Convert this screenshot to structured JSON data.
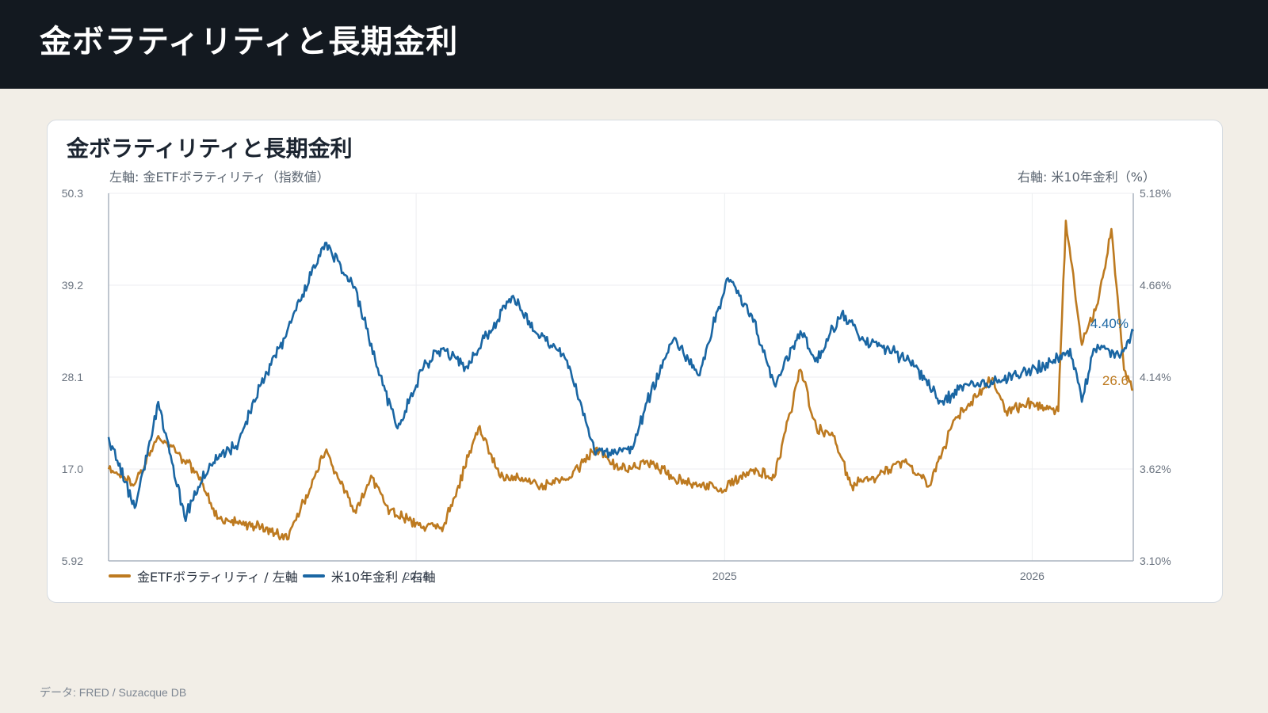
{
  "header": {
    "title": "金ボラティリティと長期金利"
  },
  "card": {
    "title": "金ボラティリティと長期金利",
    "left_axis_caption": "左軸: 金ETFボラティリティ（指数値）",
    "right_axis_caption": "右軸: 米10年金利（%）"
  },
  "legend": {
    "gold_label": "金ETFボラティリティ / 左軸",
    "rate_label": "米10年金利 / 右軸"
  },
  "footer": {
    "source": "データ: FRED / Suzacque DB"
  },
  "colors": {
    "gold": "#bd7a20",
    "rate": "#1a66a3",
    "grid": "#eceef1",
    "axis": "#aab4bf"
  },
  "chart_data": {
    "type": "line",
    "x_range": [
      "2023-01-01",
      "2026-05-01"
    ],
    "x_ticks": [
      "2024",
      "2025",
      "2026"
    ],
    "left_axis": {
      "ticks": [
        "5.92",
        "17.0",
        "28.1",
        "39.2",
        "50.3"
      ],
      "ylim": [
        5.92,
        50.3
      ]
    },
    "right_axis": {
      "ticks": [
        "3.10%",
        "3.62%",
        "4.14%",
        "4.66%",
        "5.18%"
      ],
      "ylim": [
        3.1,
        5.18
      ]
    },
    "end_labels": {
      "gold": "26.6",
      "rate": "4.40%"
    },
    "series": [
      {
        "name": "金ETFボラティリティ / 左軸",
        "axis": "left",
        "color": "#bd7a20",
        "x": [
          "2023-01-01",
          "2023-01-15",
          "2023-02-01",
          "2023-03-01",
          "2023-04-01",
          "2023-04-20",
          "2023-05-10",
          "2023-06-01",
          "2023-07-01",
          "2023-08-01",
          "2023-09-15",
          "2023-10-20",
          "2023-11-10",
          "2023-12-01",
          "2024-01-01",
          "2024-02-01",
          "2024-02-20",
          "2024-03-15",
          "2024-04-10",
          "2024-05-01",
          "2024-06-01",
          "2024-07-01",
          "2024-08-01",
          "2024-09-01",
          "2024-10-01",
          "2024-11-01",
          "2024-12-01",
          "2025-01-01",
          "2025-02-01",
          "2025-03-01",
          "2025-04-01",
          "2025-04-20",
          "2025-05-10",
          "2025-06-01",
          "2025-07-01",
          "2025-08-01",
          "2025-09-01",
          "2025-10-01",
          "2025-11-15",
          "2025-12-01",
          "2026-01-01",
          "2026-02-01",
          "2026-02-10",
          "2026-03-01",
          "2026-03-20",
          "2026-04-05",
          "2026-04-20",
          "2026-05-01"
        ],
        "values": [
          17.0,
          16.0,
          15.2,
          21.0,
          18.0,
          16.0,
          11.0,
          10.5,
          10.0,
          8.5,
          19.0,
          12.0,
          16.0,
          12.0,
          10.5,
          9.5,
          15.0,
          22.0,
          16.0,
          16.0,
          15.0,
          16.0,
          19.5,
          17.0,
          18.0,
          16.0,
          15.0,
          14.5,
          17.0,
          16.0,
          29.0,
          22.0,
          21.0,
          15.0,
          16.0,
          18.0,
          15.0,
          23.0,
          28.0,
          24.0,
          25.0,
          24.0,
          47.0,
          32.0,
          37.0,
          46.0,
          29.0,
          26.6
        ]
      },
      {
        "name": "米10年金利 / 右軸",
        "axis": "right",
        "color": "#1a66a3",
        "x": [
          "2023-01-01",
          "2023-02-01",
          "2023-03-01",
          "2023-04-01",
          "2023-05-01",
          "2023-06-01",
          "2023-07-01",
          "2023-08-01",
          "2023-09-15",
          "2023-10-20",
          "2023-11-15",
          "2023-12-10",
          "2024-01-10",
          "2024-02-01",
          "2024-03-01",
          "2024-04-25",
          "2024-05-20",
          "2024-06-15",
          "2024-07-01",
          "2024-08-01",
          "2024-09-15",
          "2024-10-01",
          "2024-11-01",
          "2024-12-01",
          "2025-01-05",
          "2025-02-01",
          "2025-03-01",
          "2025-04-01",
          "2025-04-20",
          "2025-05-20",
          "2025-06-15",
          "2025-07-15",
          "2025-08-15",
          "2025-09-15",
          "2025-10-15",
          "2025-11-15",
          "2025-12-15",
          "2026-01-15",
          "2026-02-15",
          "2026-03-01",
          "2026-03-15",
          "2026-04-01",
          "2026-04-15",
          "2026-05-01"
        ],
        "values": [
          3.8,
          3.4,
          4.0,
          3.35,
          3.65,
          3.75,
          4.1,
          4.4,
          4.9,
          4.65,
          4.2,
          3.85,
          4.2,
          4.3,
          4.2,
          4.6,
          4.4,
          4.3,
          4.2,
          3.7,
          3.75,
          4.0,
          4.35,
          4.15,
          4.7,
          4.5,
          4.1,
          4.4,
          4.25,
          4.5,
          4.35,
          4.3,
          4.2,
          4.0,
          4.1,
          4.1,
          4.15,
          4.2,
          4.3,
          4.0,
          4.3,
          4.3,
          4.25,
          4.4
        ]
      }
    ]
  }
}
